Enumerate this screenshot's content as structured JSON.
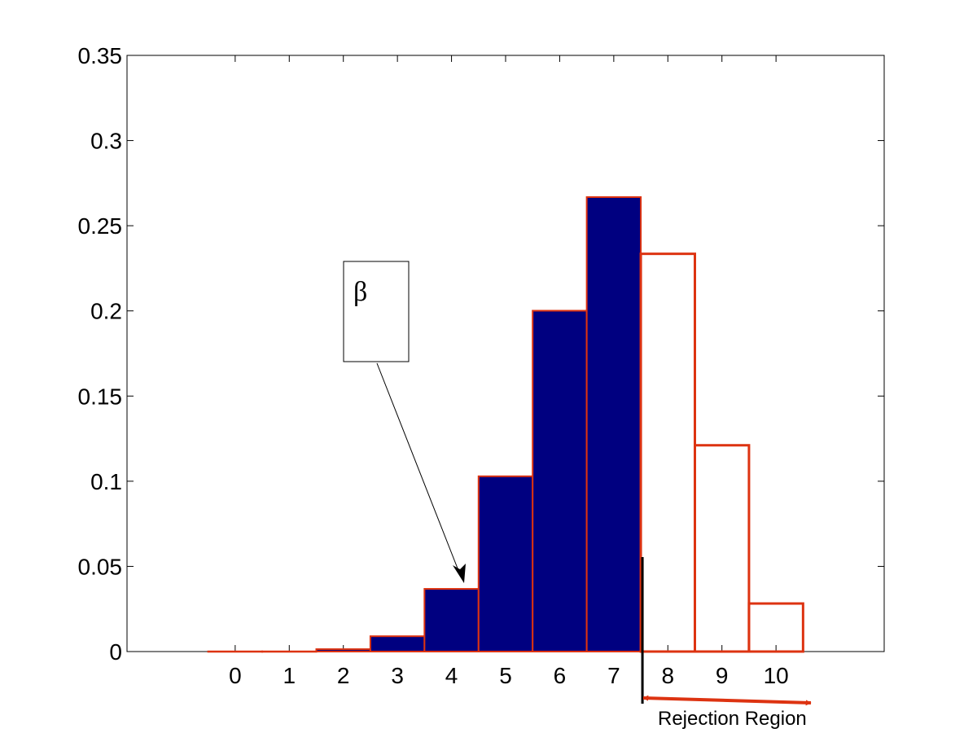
{
  "chart_data": {
    "type": "bar",
    "title": "",
    "xlabel": "",
    "ylabel": "",
    "categories": [
      "0",
      "1",
      "2",
      "3",
      "4",
      "5",
      "6",
      "7",
      "8",
      "9",
      "10"
    ],
    "values": [
      0.0001,
      0.0001,
      0.0014,
      0.009,
      0.0368,
      0.1029,
      0.2001,
      0.2668,
      0.2335,
      0.1211,
      0.0282
    ],
    "xlim": [
      -2,
      12
    ],
    "ylim": [
      0,
      0.35
    ],
    "yticks": [
      "0",
      "0.05",
      "0.1",
      "0.15",
      "0.2",
      "0.25",
      "0.3",
      "0.35"
    ],
    "grid": false,
    "filled_categories": [
      "0",
      "1",
      "2",
      "3",
      "4",
      "5",
      "6",
      "7"
    ],
    "colors": {
      "fill": "#000080",
      "edge": "#dd3311",
      "annotation": "#000000",
      "region_arrow": "#dd3311"
    },
    "annotations": {
      "beta_label": "β",
      "rejection_label": "Rejection Region",
      "critical_value_x": 7.5
    }
  }
}
